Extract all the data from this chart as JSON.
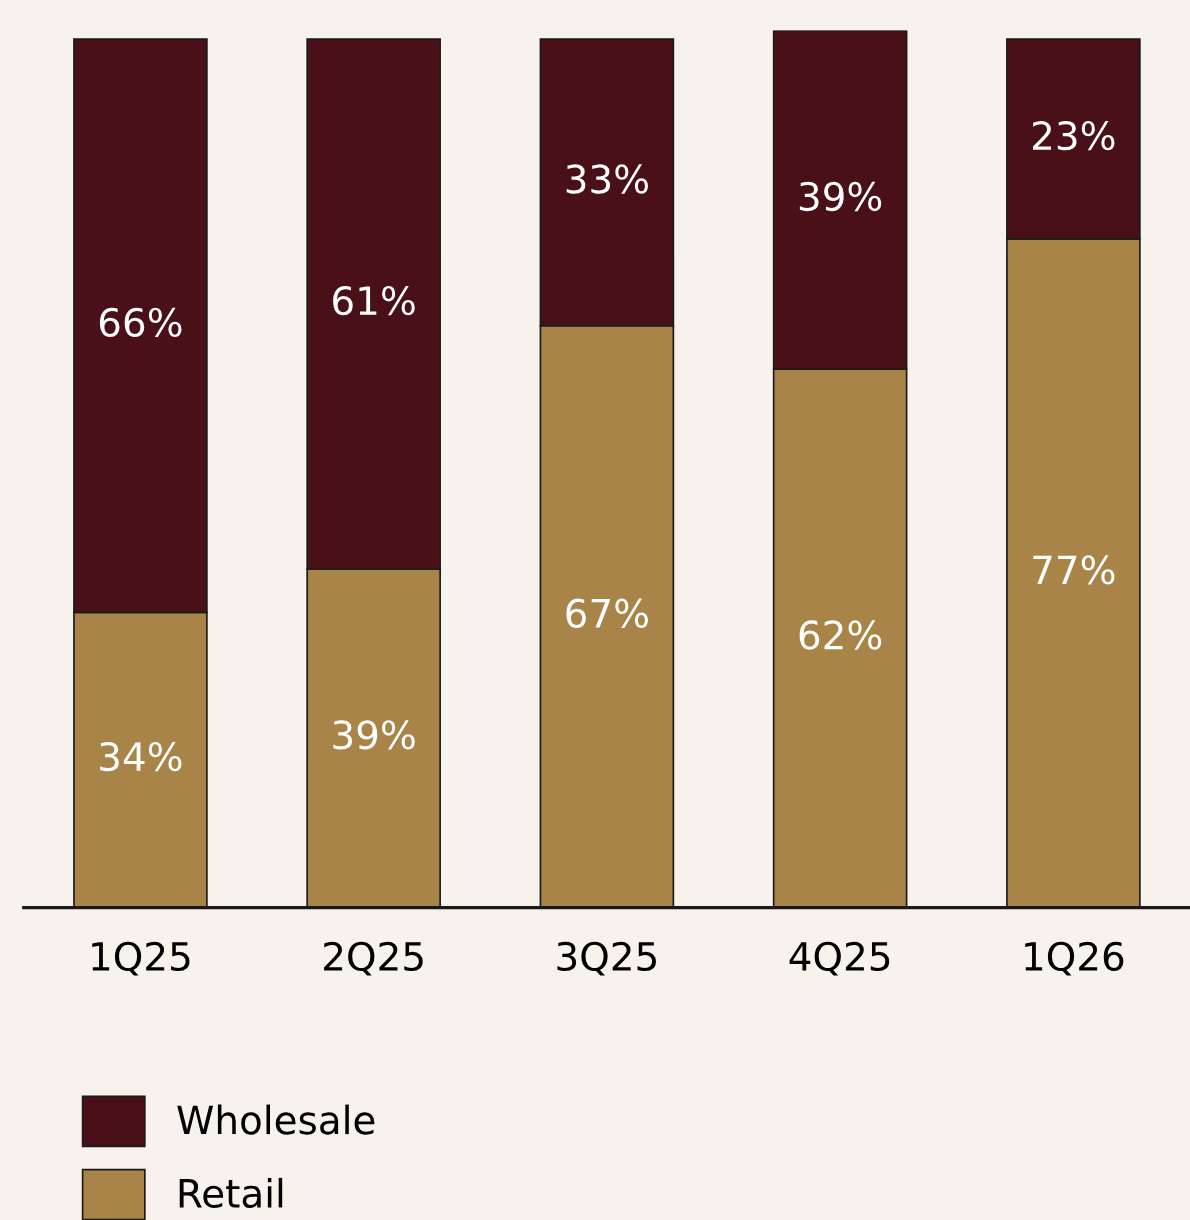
{
  "chart_data": {
    "type": "bar",
    "stacked": true,
    "categories": [
      "1Q25",
      "2Q25",
      "3Q25",
      "4Q25",
      "1Q26"
    ],
    "series": [
      {
        "name": "Retail",
        "color": "#a88448",
        "values": [
          34,
          39,
          67,
          62,
          77
        ],
        "value_labels": [
          "34%",
          "39%",
          "67%",
          "62%",
          "77%"
        ]
      },
      {
        "name": "Wholesale",
        "color": "#4a1018",
        "values": [
          66,
          61,
          33,
          39,
          23
        ],
        "value_labels": [
          "66%",
          "61%",
          "33%",
          "39%",
          "23%"
        ]
      }
    ],
    "ylim": [
      0,
      101
    ],
    "tick_labels": "x",
    "grid": false,
    "legend": "bottom left"
  }
}
